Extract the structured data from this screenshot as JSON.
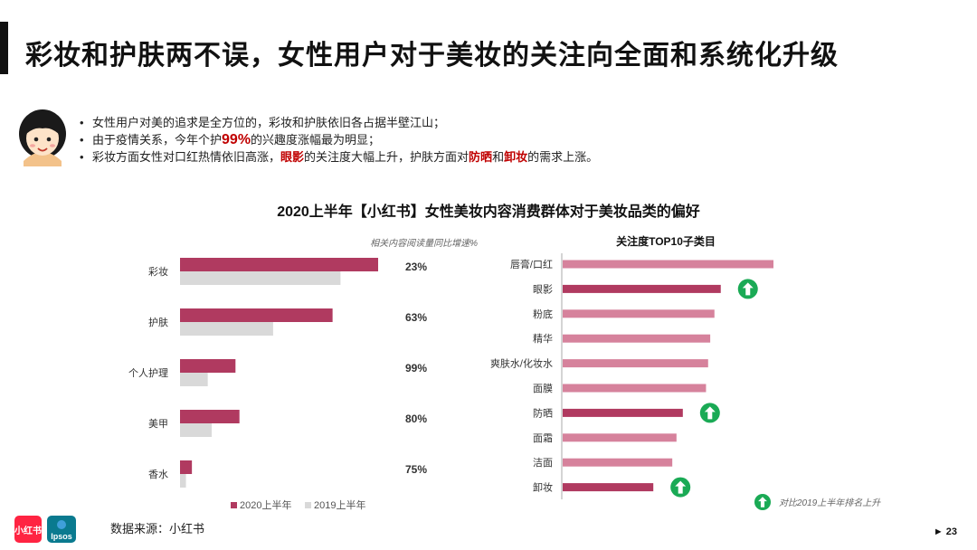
{
  "title": "彩妆和护肤两不误，女性用户对于美妆的关注向全面和系统化升级",
  "bullets": {
    "b1": "女性用户对美的追求是全方位的，彩妆和护肤依旧各占据半壁江山；",
    "b2_pre": "由于疫情关系，今年个护",
    "b2_hl": "99%",
    "b2_post": "的兴趣度涨幅最为明显；",
    "b3_pre": "彩妆方面女性对口红热情依旧高涨，",
    "b3_hl1": "眼影",
    "b3_mid": "的关注度大幅上升，护肤方面对",
    "b3_hl2": "防晒",
    "b3_and": "和",
    "b3_hl3": "卸妆",
    "b3_post": "的需求上涨。"
  },
  "chart_title": "2020上半年【小红书】女性美妆内容消费群体对于美妆品类的偏好",
  "source": "数据来源：小红书",
  "logos": {
    "xhs": "小红书",
    "ipsos": "Ipsos"
  },
  "page_number": "► 23",
  "colors": {
    "accent": "#b03a60",
    "secondary": "#d9d9d9",
    "top10": "#d6829c",
    "rising": "#b03a60",
    "up_icon": "#1aaa55",
    "highlight": "#c00000"
  },
  "chart_data": [
    {
      "type": "bar",
      "orientation": "horizontal",
      "categories": [
        "彩妆",
        "护肤",
        "个人护理",
        "美甲",
        "香水"
      ],
      "series": [
        {
          "name": "2020上半年",
          "values": [
            100,
            77,
            28,
            30,
            6
          ]
        },
        {
          "name": "2019上半年",
          "values": [
            81,
            47,
            14,
            16,
            3
          ]
        }
      ],
      "growth_labels": [
        "23%",
        "63%",
        "99%",
        "80%",
        "75%"
      ],
      "annotation": "相关内容阅读量同比增速%",
      "note": "values are relative (no axis shown)"
    },
    {
      "type": "bar",
      "orientation": "horizontal",
      "title": "关注度TOP10子类目",
      "categories": [
        "唇膏/口红",
        "眼影",
        "粉底",
        "精华",
        "爽肤水/化妆水",
        "面膜",
        "防晒",
        "面霜",
        "洁面",
        "卸妆"
      ],
      "values": [
        100,
        75,
        72,
        70,
        69,
        68,
        57,
        54,
        52,
        43
      ],
      "rising": [
        false,
        true,
        false,
        false,
        false,
        false,
        true,
        false,
        false,
        true
      ],
      "legend_note": "对比2019上半年排名上升",
      "note": "values are relative (no axis shown)"
    }
  ]
}
